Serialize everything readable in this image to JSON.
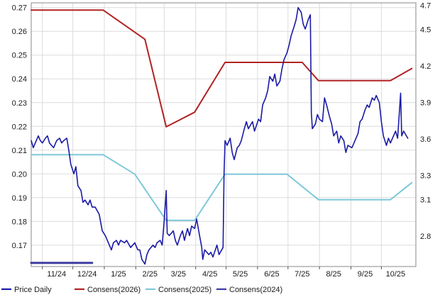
{
  "chart_data": {
    "type": "line",
    "title": "",
    "xlabel": "",
    "ylabel": "",
    "x_ticks": [
      "11/24",
      "12/24",
      "1/25",
      "2/25",
      "3/25",
      "4/25",
      "5/25",
      "6/25",
      "7/25",
      "8/25",
      "9/25",
      "10/25"
    ],
    "left_axis": {
      "ticks": [
        "0.17",
        "0.18",
        "0.19",
        "0.20",
        "0.21",
        "0.22",
        "0.23",
        "0.24",
        "0.25",
        "0.26",
        "0.27"
      ],
      "range": [
        0.161,
        0.272
      ]
    },
    "right_axis": {
      "ticks": [
        "2.8",
        "3.1",
        "3.3",
        "3.6",
        "3.9",
        "4.2",
        "4.5",
        "4.7"
      ],
      "range": [
        2.55,
        4.72
      ]
    },
    "grid": true,
    "legend_position": "bottom",
    "series": [
      {
        "name": "Price Daily",
        "color": "#1a1aa6",
        "axis": "left",
        "points": [
          [
            "2024-10-21",
            0.214
          ],
          [
            "2024-10-23",
            0.211
          ],
          [
            "2024-10-25",
            0.213
          ],
          [
            "2024-10-28",
            0.216
          ],
          [
            "2024-10-30",
            0.214
          ],
          [
            "2024-11-01",
            0.213
          ],
          [
            "2024-11-04",
            0.215
          ],
          [
            "2024-11-06",
            0.216
          ],
          [
            "2024-11-08",
            0.213
          ],
          [
            "2024-11-12",
            0.211
          ],
          [
            "2024-11-15",
            0.214
          ],
          [
            "2024-11-18",
            0.215
          ],
          [
            "2024-11-20",
            0.213
          ],
          [
            "2024-11-22",
            0.214
          ],
          [
            "2024-11-25",
            0.215
          ],
          [
            "2024-11-27",
            0.21
          ],
          [
            "2024-11-29",
            0.204
          ],
          [
            "2024-12-02",
            0.2
          ],
          [
            "2024-12-04",
            0.203
          ],
          [
            "2024-12-06",
            0.195
          ],
          [
            "2024-12-09",
            0.193
          ],
          [
            "2024-12-11",
            0.188
          ],
          [
            "2024-12-13",
            0.189
          ],
          [
            "2024-12-16",
            0.187
          ],
          [
            "2024-12-18",
            0.189
          ],
          [
            "2024-12-20",
            0.186
          ],
          [
            "2024-12-23",
            0.186
          ],
          [
            "2024-12-27",
            0.183
          ],
          [
            "2024-12-30",
            0.176
          ],
          [
            "2025-01-02",
            0.174
          ],
          [
            "2025-01-06",
            0.17
          ],
          [
            "2025-01-08",
            0.168
          ],
          [
            "2025-01-10",
            0.171
          ],
          [
            "2025-01-13",
            0.172
          ],
          [
            "2025-01-15",
            0.17
          ],
          [
            "2025-01-17",
            0.172
          ],
          [
            "2025-01-21",
            0.171
          ],
          [
            "2025-01-23",
            0.172
          ],
          [
            "2025-01-27",
            0.169
          ],
          [
            "2025-01-29",
            0.17
          ],
          [
            "2025-01-31",
            0.171
          ],
          [
            "2025-02-03",
            0.168
          ],
          [
            "2025-02-05",
            0.168
          ],
          [
            "2025-02-07",
            0.164
          ],
          [
            "2025-02-10",
            0.162
          ],
          [
            "2025-02-12",
            0.166
          ],
          [
            "2025-02-14",
            0.168
          ],
          [
            "2025-02-18",
            0.17
          ],
          [
            "2025-02-20",
            0.169
          ],
          [
            "2025-02-22",
            0.171
          ],
          [
            "2025-02-25",
            0.172
          ],
          [
            "2025-02-27",
            0.17
          ],
          [
            "2025-03-01",
            0.18
          ],
          [
            "2025-03-03",
            0.193
          ],
          [
            "2025-03-04",
            0.175
          ],
          [
            "2025-03-06",
            0.174
          ],
          [
            "2025-03-10",
            0.176
          ],
          [
            "2025-03-12",
            0.172
          ],
          [
            "2025-03-14",
            0.17
          ],
          [
            "2025-03-17",
            0.174
          ],
          [
            "2025-03-19",
            0.176
          ],
          [
            "2025-03-21",
            0.172
          ],
          [
            "2025-03-24",
            0.177
          ],
          [
            "2025-03-26",
            0.174
          ],
          [
            "2025-03-28",
            0.178
          ],
          [
            "2025-03-31",
            0.177
          ],
          [
            "2025-04-02",
            0.181
          ],
          [
            "2025-04-04",
            0.176
          ],
          [
            "2025-04-07",
            0.169
          ],
          [
            "2025-04-08",
            0.164
          ],
          [
            "2025-04-10",
            0.168
          ],
          [
            "2025-04-14",
            0.166
          ],
          [
            "2025-04-16",
            0.167
          ],
          [
            "2025-04-18",
            0.165
          ],
          [
            "2025-04-22",
            0.17
          ],
          [
            "2025-04-24",
            0.166
          ],
          [
            "2025-04-28",
            0.169
          ],
          [
            "2025-04-29",
            0.2
          ],
          [
            "2025-04-30",
            0.214
          ],
          [
            "2025-05-02",
            0.212
          ],
          [
            "2025-05-05",
            0.215
          ],
          [
            "2025-05-07",
            0.209
          ],
          [
            "2025-05-09",
            0.206
          ],
          [
            "2025-05-12",
            0.211
          ],
          [
            "2025-05-14",
            0.212
          ],
          [
            "2025-05-16",
            0.214
          ],
          [
            "2025-05-19",
            0.219
          ],
          [
            "2025-05-21",
            0.222
          ],
          [
            "2025-05-23",
            0.219
          ],
          [
            "2025-05-27",
            0.222
          ],
          [
            "2025-05-29",
            0.218
          ],
          [
            "2025-06-02",
            0.223
          ],
          [
            "2025-06-04",
            0.222
          ],
          [
            "2025-06-06",
            0.229
          ],
          [
            "2025-06-09",
            0.232
          ],
          [
            "2025-06-11",
            0.235
          ],
          [
            "2025-06-13",
            0.241
          ],
          [
            "2025-06-16",
            0.239
          ],
          [
            "2025-06-18",
            0.242
          ],
          [
            "2025-06-20",
            0.237
          ],
          [
            "2025-06-23",
            0.239
          ],
          [
            "2025-06-25",
            0.244
          ],
          [
            "2025-06-27",
            0.248
          ],
          [
            "2025-06-30",
            0.251
          ],
          [
            "2025-07-02",
            0.254
          ],
          [
            "2025-07-04",
            0.258
          ],
          [
            "2025-07-07",
            0.262
          ],
          [
            "2025-07-09",
            0.265
          ],
          [
            "2025-07-11",
            0.27
          ],
          [
            "2025-07-14",
            0.268
          ],
          [
            "2025-07-16",
            0.263
          ],
          [
            "2025-07-18",
            0.261
          ],
          [
            "2025-07-21",
            0.265
          ],
          [
            "2025-07-23",
            0.267
          ],
          [
            "2025-07-24",
            0.226
          ],
          [
            "2025-07-25",
            0.219
          ],
          [
            "2025-07-28",
            0.221
          ],
          [
            "2025-07-30",
            0.225
          ],
          [
            "2025-08-01",
            0.223
          ],
          [
            "2025-08-04",
            0.222
          ],
          [
            "2025-08-06",
            0.232
          ],
          [
            "2025-08-08",
            0.229
          ],
          [
            "2025-08-11",
            0.224
          ],
          [
            "2025-08-13",
            0.221
          ],
          [
            "2025-08-15",
            0.216
          ],
          [
            "2025-08-18",
            0.218
          ],
          [
            "2025-08-20",
            0.213
          ],
          [
            "2025-08-22",
            0.216
          ],
          [
            "2025-08-25",
            0.214
          ],
          [
            "2025-08-27",
            0.209
          ],
          [
            "2025-08-29",
            0.212
          ],
          [
            "2025-09-02",
            0.211
          ],
          [
            "2025-09-04",
            0.213
          ],
          [
            "2025-09-08",
            0.217
          ],
          [
            "2025-09-10",
            0.222
          ],
          [
            "2025-09-12",
            0.223
          ],
          [
            "2025-09-15",
            0.227
          ],
          [
            "2025-09-17",
            0.229
          ],
          [
            "2025-09-19",
            0.228
          ],
          [
            "2025-09-22",
            0.232
          ],
          [
            "2025-09-24",
            0.231
          ],
          [
            "2025-09-26",
            0.233
          ],
          [
            "2025-09-29",
            0.23
          ],
          [
            "2025-10-01",
            0.222
          ],
          [
            "2025-10-03",
            0.216
          ],
          [
            "2025-10-06",
            0.212
          ],
          [
            "2025-10-08",
            0.215
          ],
          [
            "2025-10-10",
            0.213
          ],
          [
            "2025-10-13",
            0.216
          ],
          [
            "2025-10-15",
            0.218
          ],
          [
            "2025-10-17",
            0.215
          ],
          [
            "2025-10-20",
            0.234
          ],
          [
            "2025-10-21",
            0.216
          ],
          [
            "2025-10-23",
            0.218
          ],
          [
            "2025-10-27",
            0.215
          ]
        ]
      },
      {
        "name": "Consens(2026)",
        "color": "#b22222",
        "axis": "right",
        "points": [
          [
            "2024-10-21",
            4.66
          ],
          [
            "2024-12-31",
            4.66
          ],
          [
            "2025-02-10",
            4.42
          ],
          [
            "2025-03-03",
            3.7
          ],
          [
            "2025-03-31",
            3.82
          ],
          [
            "2025-04-30",
            4.23
          ],
          [
            "2025-07-15",
            4.23
          ],
          [
            "2025-07-31",
            4.08
          ],
          [
            "2025-10-10",
            4.08
          ],
          [
            "2025-10-31",
            4.18
          ]
        ]
      },
      {
        "name": "Consens(2025)",
        "color": "#7ec8d8",
        "axis": "right",
        "points": [
          [
            "2024-10-21",
            3.47
          ],
          [
            "2024-12-31",
            3.47
          ],
          [
            "2025-01-31",
            3.31
          ],
          [
            "2025-03-03",
            2.93
          ],
          [
            "2025-03-31",
            2.93
          ],
          [
            "2025-04-30",
            3.31
          ],
          [
            "2025-06-30",
            3.31
          ],
          [
            "2025-07-31",
            3.1
          ],
          [
            "2025-10-10",
            3.1
          ],
          [
            "2025-10-31",
            3.24
          ]
        ]
      },
      {
        "name": "Consens(2024)",
        "color": "#3a3aa0",
        "axis": "right",
        "points": [
          [
            "2024-10-21",
            2.58
          ],
          [
            "2024-12-20",
            2.58
          ]
        ]
      }
    ]
  }
}
